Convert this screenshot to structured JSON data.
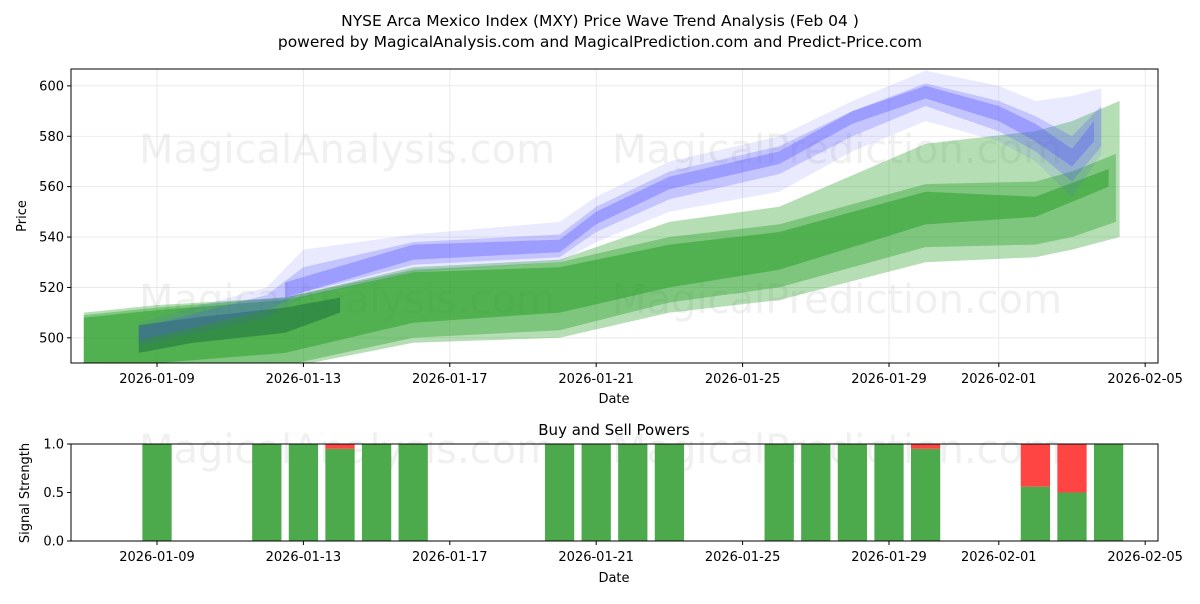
{
  "title_line1": "NYSE Arca Mexico Index (MXY) Price Wave Trend Analysis (Feb 04 )",
  "title_line2": "powered by MagicalAnalysis.com and MagicalPrediction.com and Predict-Price.com",
  "watermarks": [
    "MagicalAnalysis.com",
    "MagicalPrediction.com"
  ],
  "colors": {
    "green": "#2ca02c",
    "blue": "#5555ff",
    "dark_green": "#1a6b3c",
    "buy": "#4caa4c",
    "sell": "#ff4444"
  },
  "chart_data": [
    {
      "type": "area",
      "title": "",
      "xlabel": "Date",
      "ylabel": "Price",
      "x_unit": "day of 2026 (Jan 1 = 1)",
      "xlim": [
        6.65,
        36.35
      ],
      "ylim": [
        490,
        606.7
      ],
      "yticks": [
        500,
        520,
        540,
        560,
        580,
        600
      ],
      "xticks": [
        {
          "day": 9,
          "label": "2026-01-09"
        },
        {
          "day": 13,
          "label": "2026-01-13"
        },
        {
          "day": 17,
          "label": "2026-01-17"
        },
        {
          "day": 21,
          "label": "2026-01-21"
        },
        {
          "day": 25,
          "label": "2026-01-25"
        },
        {
          "day": 29,
          "label": "2026-01-29"
        },
        {
          "day": 32,
          "label": "2026-02-01"
        },
        {
          "day": 36,
          "label": "2026-02-05"
        }
      ],
      "grid": true,
      "series": [
        {
          "name": "green-wide",
          "color": "green",
          "opacity": 0.35,
          "x": [
            7,
            9,
            12.5,
            16,
            20,
            23,
            26,
            30,
            33,
            34,
            35.3
          ],
          "lower": [
            488,
            486,
            488,
            498,
            500,
            510,
            515,
            530,
            532,
            535,
            540
          ],
          "upper": [
            510,
            513,
            516,
            528,
            531,
            546,
            552,
            577,
            582,
            586,
            594
          ]
        },
        {
          "name": "green-mid",
          "color": "green",
          "opacity": 0.4,
          "x": [
            7,
            9,
            12.5,
            16,
            20,
            23,
            26,
            30,
            33,
            34,
            35.2
          ],
          "lower": [
            488,
            487,
            489,
            500,
            503,
            514,
            520,
            536,
            537,
            540,
            546
          ],
          "upper": [
            509,
            512,
            516,
            527,
            530,
            540,
            545,
            561,
            562,
            566,
            573
          ]
        },
        {
          "name": "green-core",
          "color": "green",
          "opacity": 0.55,
          "x": [
            7,
            9,
            12.5,
            16,
            20,
            23,
            26,
            30,
            33,
            35
          ],
          "lower": [
            488,
            490,
            494,
            506,
            510,
            520,
            527,
            545,
            548,
            560
          ],
          "upper": [
            508,
            511,
            515,
            526,
            528,
            537,
            542,
            558,
            556,
            567
          ]
        },
        {
          "name": "dark-early",
          "color": "dark_green",
          "opacity": 0.5,
          "x": [
            8.5,
            10,
            12.5,
            14
          ],
          "lower": [
            494,
            498,
            502,
            510
          ],
          "upper": [
            505,
            508,
            512,
            516
          ]
        },
        {
          "name": "blue-wide",
          "color": "blue",
          "opacity": 0.12,
          "x": [
            8.5,
            12,
            13,
            16,
            20,
            21,
            23,
            26,
            28,
            30,
            32,
            33,
            34,
            34.8
          ],
          "lower": [
            497,
            508,
            516,
            526,
            530,
            538,
            550,
            558,
            574,
            586,
            578,
            570,
            556,
            573
          ],
          "upper": [
            506,
            520,
            535,
            541,
            546,
            556,
            570,
            580,
            594,
            606,
            600,
            594,
            596,
            599
          ]
        },
        {
          "name": "blue-mid",
          "color": "blue",
          "opacity": 0.25,
          "x": [
            8.5,
            12,
            13,
            16,
            20,
            21,
            23,
            26,
            28,
            30,
            32,
            33,
            34,
            34.8
          ],
          "lower": [
            499,
            511,
            518,
            529,
            532,
            542,
            555,
            565,
            580,
            592,
            582,
            574,
            562,
            576
          ],
          "upper": [
            504,
            517,
            528,
            538,
            541,
            552,
            566,
            576,
            590,
            601,
            594,
            588,
            580,
            592
          ]
        },
        {
          "name": "blue-core",
          "color": "blue",
          "opacity": 0.35,
          "x": [
            12.5,
            16,
            20,
            21,
            23,
            26,
            28,
            30,
            32,
            33,
            34,
            34.6
          ],
          "lower": [
            516,
            531,
            534,
            545,
            559,
            569,
            585,
            595,
            586,
            578,
            568,
            578
          ],
          "upper": [
            522,
            537,
            539,
            550,
            564,
            574,
            590,
            600,
            592,
            585,
            575,
            586
          ]
        }
      ]
    },
    {
      "type": "bar",
      "title": "Buy and Sell Powers",
      "xlabel": "Date",
      "ylabel": "Signal Strength",
      "ylim": [
        0,
        1
      ],
      "yticks": [
        {
          "v": 0,
          "label": "0.0"
        },
        {
          "v": 0.5,
          "label": "0.5"
        },
        {
          "v": 1,
          "label": "1.0"
        }
      ],
      "xticks": [
        {
          "day": 9,
          "label": "2026-01-09"
        },
        {
          "day": 13,
          "label": "2026-01-13"
        },
        {
          "day": 17,
          "label": "2026-01-17"
        },
        {
          "day": 21,
          "label": "2026-01-21"
        },
        {
          "day": 25,
          "label": "2026-01-25"
        },
        {
          "day": 29,
          "label": "2026-01-29"
        },
        {
          "day": 32,
          "label": "2026-02-01"
        },
        {
          "day": 36,
          "label": "2026-02-05"
        }
      ],
      "days": [
        9,
        12,
        13,
        14,
        15,
        16,
        20,
        21,
        22,
        23,
        26,
        27,
        28,
        29,
        30,
        33,
        34,
        35
      ],
      "buy": [
        1,
        1,
        1,
        0.95,
        1,
        1,
        1,
        1,
        1,
        1,
        1,
        1,
        1,
        1,
        0.95,
        0.56,
        0.5,
        1
      ],
      "sell": [
        0,
        0,
        0,
        0.05,
        0,
        0,
        0,
        0,
        0,
        0,
        0,
        0,
        0,
        0,
        0.05,
        0.44,
        0.5,
        0
      ]
    }
  ]
}
